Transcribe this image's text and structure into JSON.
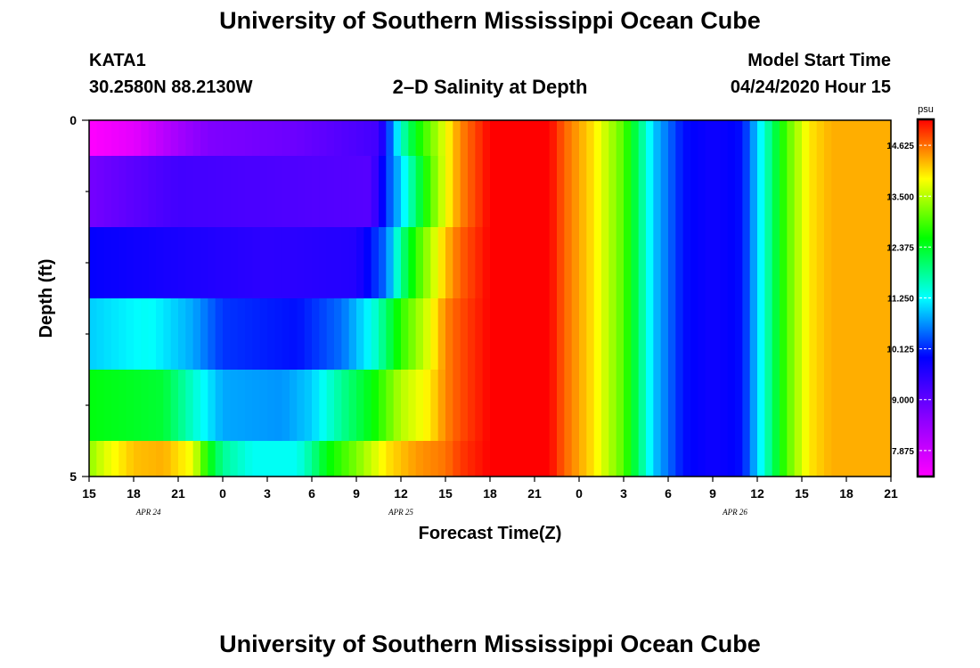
{
  "header": {
    "title_top": "University of Southern Mississippi Ocean Cube",
    "title_bottom": "University of Southern Mississippi Ocean Cube",
    "station_id": "KATA1",
    "station_coords": "30.2580N 88.2130W",
    "model_start_label": "Model Start Time",
    "model_start_value": "04/24/2020 Hour 15"
  },
  "chart_data": {
    "type": "heatmap",
    "title": "2–D Salinity at Depth",
    "xlabel": "Forecast Time(Z)",
    "ylabel": "Depth (ft)",
    "units": "psu",
    "x_tick_labels": [
      "15",
      "18",
      "21",
      "0",
      "3",
      "6",
      "9",
      "12",
      "15",
      "18",
      "21",
      "0",
      "3",
      "6",
      "9",
      "12",
      "15",
      "18",
      "21"
    ],
    "x_range_hours": [
      0,
      54
    ],
    "date_labels": [
      {
        "text": "APR  24",
        "hour": 4
      },
      {
        "text": "APR  25",
        "hour": 21
      },
      {
        "text": "APR  26",
        "hour": 43.5
      }
    ],
    "y_tick_labels": [
      "0",
      "5"
    ],
    "y_range": [
      0,
      5
    ],
    "colorbar": {
      "min": 7.3,
      "max": 15.2,
      "ticks": [
        7.875,
        9.0,
        10.125,
        11.25,
        12.375,
        13.5,
        14.625
      ],
      "tick_labels": [
        "7.875",
        "9.000",
        "10.125",
        "11.250",
        "12.375",
        "13.500",
        "14.625"
      ],
      "colors": [
        "#ff00ff",
        "#8800ff",
        "#0000ff",
        "#00ffff",
        "#00ff00",
        "#ffff00",
        "#ff0000"
      ]
    },
    "rows": [
      {
        "depth": [
          0,
          0.5
        ],
        "profile": [
          [
            0,
            7.3
          ],
          [
            3,
            7.6
          ],
          [
            6,
            8.3
          ],
          [
            8,
            8.7
          ],
          [
            14,
            8.9
          ],
          [
            19.5,
            9.3
          ],
          [
            20,
            10
          ],
          [
            21,
            11.5
          ],
          [
            22,
            12.5
          ],
          [
            24,
            13.8
          ],
          [
            25,
            14.5
          ],
          [
            27,
            15.2
          ],
          [
            31,
            15.2
          ],
          [
            32,
            14.7
          ],
          [
            34,
            14
          ],
          [
            36,
            13
          ],
          [
            37,
            12
          ],
          [
            38,
            11
          ],
          [
            39,
            10.5
          ],
          [
            40,
            10
          ],
          [
            42,
            9.8
          ],
          [
            44,
            10
          ],
          [
            45,
            11
          ],
          [
            46,
            12
          ],
          [
            47,
            13
          ],
          [
            48.5,
            14
          ],
          [
            50,
            14.3
          ],
          [
            54,
            14.3
          ]
        ]
      },
      {
        "depth": [
          0.5,
          1.5
        ],
        "profile": [
          [
            0,
            8.8
          ],
          [
            6,
            9.3
          ],
          [
            12,
            9.2
          ],
          [
            19,
            9.1
          ],
          [
            20,
            10.2
          ],
          [
            21,
            11
          ],
          [
            22,
            12
          ],
          [
            23,
            13
          ],
          [
            24,
            13.8
          ],
          [
            25,
            14.5
          ],
          [
            27,
            15.2
          ],
          [
            31,
            15.2
          ],
          [
            32,
            14.7
          ],
          [
            34,
            14
          ],
          [
            36,
            13
          ],
          [
            37,
            12
          ],
          [
            38,
            11
          ],
          [
            39,
            10.5
          ],
          [
            40,
            10
          ],
          [
            42,
            9.8
          ],
          [
            44,
            10
          ],
          [
            45,
            11
          ],
          [
            46,
            12
          ],
          [
            47,
            13
          ],
          [
            48.5,
            14
          ],
          [
            50,
            14.3
          ],
          [
            54,
            14.3
          ]
        ]
      },
      {
        "depth": [
          1.5,
          2.5
        ],
        "profile": [
          [
            0,
            9.9
          ],
          [
            6,
            9.7
          ],
          [
            12,
            9.5
          ],
          [
            18,
            9.6
          ],
          [
            20,
            10.5
          ],
          [
            21,
            11.8
          ],
          [
            22,
            12.8
          ],
          [
            23,
            13.5
          ],
          [
            24,
            14.2
          ],
          [
            25,
            14.7
          ],
          [
            27,
            15.2
          ],
          [
            31,
            15.2
          ],
          [
            32,
            14.7
          ],
          [
            34,
            14
          ],
          [
            36,
            13
          ],
          [
            37,
            12
          ],
          [
            38,
            11
          ],
          [
            39,
            10.5
          ],
          [
            40,
            10
          ],
          [
            42,
            9.8
          ],
          [
            44,
            10
          ],
          [
            45,
            11
          ],
          [
            46,
            12
          ],
          [
            47,
            13
          ],
          [
            48.5,
            14
          ],
          [
            50,
            14.3
          ],
          [
            54,
            14.3
          ]
        ]
      },
      {
        "depth": [
          2.5,
          3.5
        ],
        "profile": [
          [
            0,
            11
          ],
          [
            4,
            11.3
          ],
          [
            7,
            10.8
          ],
          [
            9,
            10.2
          ],
          [
            14,
            10
          ],
          [
            17,
            10.5
          ],
          [
            19,
            11.3
          ],
          [
            20,
            12
          ],
          [
            21,
            12.8
          ],
          [
            22,
            13.3
          ],
          [
            23,
            13.8
          ],
          [
            24,
            14.5
          ],
          [
            25,
            14.8
          ],
          [
            27,
            15.2
          ],
          [
            31,
            15.2
          ],
          [
            32,
            14.7
          ],
          [
            34,
            14
          ],
          [
            36,
            13
          ],
          [
            37,
            12
          ],
          [
            38,
            11
          ],
          [
            39,
            10.5
          ],
          [
            40,
            10
          ],
          [
            42,
            9.8
          ],
          [
            44,
            10
          ],
          [
            45,
            11
          ],
          [
            46,
            12
          ],
          [
            47,
            13
          ],
          [
            48.5,
            14
          ],
          [
            50,
            14.3
          ],
          [
            54,
            14.3
          ]
        ]
      },
      {
        "depth": [
          3.5,
          4.5
        ],
        "profile": [
          [
            0,
            12.5
          ],
          [
            5,
            12.3
          ],
          [
            7,
            11.5
          ],
          [
            9,
            10.8
          ],
          [
            13,
            10.7
          ],
          [
            15,
            11
          ],
          [
            17,
            11.8
          ],
          [
            19,
            12.5
          ],
          [
            20,
            13
          ],
          [
            21,
            13.5
          ],
          [
            23,
            14
          ],
          [
            24,
            14.5
          ],
          [
            25,
            14.8
          ],
          [
            27,
            15.2
          ],
          [
            31,
            15.2
          ],
          [
            32,
            14.7
          ],
          [
            34,
            14
          ],
          [
            36,
            13
          ],
          [
            37,
            12
          ],
          [
            38,
            11
          ],
          [
            39,
            10.5
          ],
          [
            40,
            10
          ],
          [
            42,
            9.8
          ],
          [
            44,
            10
          ],
          [
            45,
            11
          ],
          [
            46,
            12
          ],
          [
            47,
            13
          ],
          [
            48.5,
            14
          ],
          [
            50,
            14.3
          ],
          [
            54,
            14.3
          ]
        ]
      },
      {
        "depth": [
          4.5,
          5
        ],
        "profile": [
          [
            0,
            13.3
          ],
          [
            1,
            13.7
          ],
          [
            3,
            14.2
          ],
          [
            5,
            14.3
          ],
          [
            7,
            13.8
          ],
          [
            8,
            12.6
          ],
          [
            9,
            11.8
          ],
          [
            11,
            11.3
          ],
          [
            14,
            11.3
          ],
          [
            15,
            11.8
          ],
          [
            16,
            12.5
          ],
          [
            18,
            13.2
          ],
          [
            20,
            14
          ],
          [
            22,
            14.4
          ],
          [
            24,
            14.6
          ],
          [
            25,
            14.9
          ],
          [
            27,
            15.2
          ],
          [
            31,
            15.2
          ],
          [
            32,
            14.7
          ],
          [
            34,
            14
          ],
          [
            36,
            13
          ],
          [
            37,
            12
          ],
          [
            38,
            11
          ],
          [
            39,
            10.5
          ],
          [
            40,
            10
          ],
          [
            42,
            9.8
          ],
          [
            44,
            10
          ],
          [
            45,
            11
          ],
          [
            46,
            12
          ],
          [
            47,
            13
          ],
          [
            48.5,
            14
          ],
          [
            50,
            14.3
          ],
          [
            54,
            14.3
          ]
        ]
      }
    ]
  }
}
